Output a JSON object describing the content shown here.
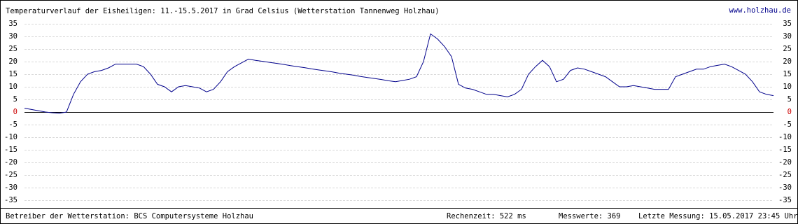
{
  "chart_data": {
    "type": "line",
    "title": "Temperaturverlauf der Eisheiligen: 11.-15.5.2017 in Grad Celsius (Wetterstation Tannenweg Holzhau)",
    "link": "www.holzhau.de",
    "series": [
      {
        "name": "Temperatur",
        "color": "#00008b",
        "values": [
          1.5,
          1,
          0.5,
          0,
          -0.3,
          -0.5,
          0,
          7,
          12,
          15,
          16,
          16.5,
          17.5,
          19,
          19,
          19,
          19,
          18,
          15,
          11,
          10,
          8,
          10,
          10.5,
          10,
          9.5,
          8,
          9,
          12,
          16,
          18,
          19.5,
          21,
          20.5,
          20.1,
          19.7,
          19.3,
          18.9,
          18.4,
          18.0,
          17.6,
          17.1,
          16.7,
          16.3,
          15.9,
          15.4,
          15.0,
          14.6,
          14.1,
          13.7,
          13.3,
          12.9,
          12.4,
          12,
          12.5,
          13,
          14,
          20,
          31,
          29,
          26,
          22,
          11,
          9.5,
          9,
          8,
          7,
          7,
          6.5,
          6,
          7,
          9,
          15,
          18,
          20.5,
          18,
          12,
          13,
          16.5,
          17.5,
          17,
          16,
          15,
          14,
          12,
          10,
          10,
          10.5,
          10,
          9.5,
          9,
          9,
          9,
          14,
          15,
          16,
          17,
          17,
          18,
          18.5,
          19,
          18,
          16.5,
          15,
          12,
          8,
          7,
          6.5
        ]
      }
    ],
    "ylim": [
      -35,
      35
    ],
    "yticks": [
      35,
      30,
      25,
      20,
      15,
      10,
      5,
      0,
      -5,
      -10,
      -15,
      -20,
      -25,
      -30,
      -35
    ],
    "grid": true,
    "zero_color": "#cc0000",
    "footer": {
      "operator": "Betreiber der Wetterstation: BCS Computersysteme Holzhau",
      "compute_time": "Rechenzeit: 522 ms",
      "count": "Messwerte: 369",
      "last": "Letzte Messung: 15.05.2017 23:45 Uhr"
    }
  }
}
